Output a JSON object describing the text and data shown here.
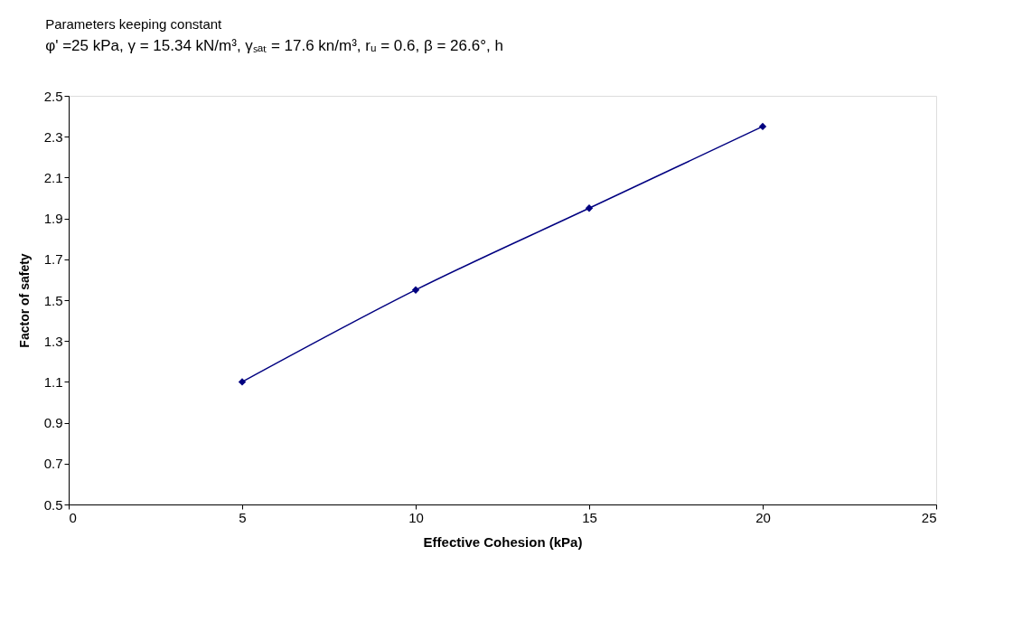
{
  "chart_data": {
    "type": "line",
    "title": "Parameters keeping constant",
    "subtitle": "φ' =25 kPa, γ = 15.34 kN/m³, γₛₐₜ = 17.6 kn/m³, rᵤ = 0.6, β = 26.6°, h",
    "xlabel": "Effective Cohesion (kPa)",
    "ylabel": "Factor of safety",
    "x": [
      5,
      10,
      15,
      20
    ],
    "series": [
      {
        "color": "#000080",
        "values": [
          1.1,
          1.55,
          1.95,
          2.35
        ]
      }
    ],
    "xlim": [
      0,
      25
    ],
    "xticks": [
      0,
      5,
      10,
      15,
      20,
      25
    ],
    "ylim": [
      0.5,
      2.5
    ],
    "yticks": [
      0.5,
      0.7,
      0.9,
      1.1,
      1.3,
      1.5,
      1.7,
      1.9,
      2.1,
      2.3,
      2.5
    ],
    "grid": false,
    "legend": false,
    "marker": "diamond",
    "line_style": "solid"
  }
}
